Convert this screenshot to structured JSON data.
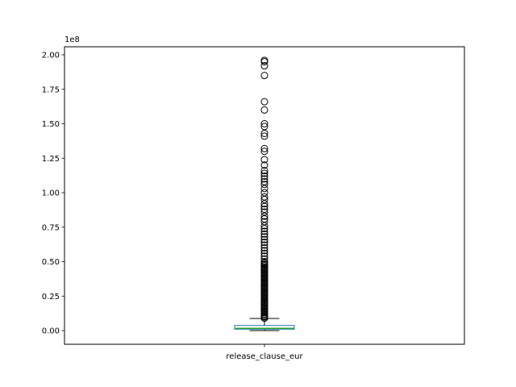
{
  "chart_data": {
    "type": "box",
    "title": "",
    "xlabel": "",
    "ylabel": "",
    "categories": [
      "release_clause_eur"
    ],
    "y_scale_label": "1e8",
    "ylim": [
      -0.1,
      2.05
    ],
    "y_ticks": [
      0.0,
      0.25,
      0.5,
      0.75,
      1.0,
      1.25,
      1.5,
      1.75,
      2.0
    ],
    "y_tick_labels": [
      "0.00",
      "0.25",
      "0.50",
      "0.75",
      "1.00",
      "1.25",
      "1.50",
      "1.75",
      "2.00"
    ],
    "grid": false,
    "legend": "none",
    "box": {
      "whisker_low": 0.0,
      "q1": 0.01,
      "median": 0.016,
      "q3": 0.037,
      "whisker_high": 0.088
    },
    "outliers": [
      1.96,
      1.95,
      1.92,
      1.85,
      1.66,
      1.6,
      1.5,
      1.48,
      1.43,
      1.41,
      1.32,
      1.3,
      1.24,
      1.2,
      1.16,
      1.14,
      1.12,
      1.1,
      1.08,
      1.06,
      1.03,
      1.0,
      0.97,
      0.95,
      0.92,
      0.9,
      0.88,
      0.86,
      0.83,
      0.81,
      0.79,
      0.76,
      0.74,
      0.72,
      0.7,
      0.68,
      0.66,
      0.64,
      0.62,
      0.6,
      0.58,
      0.56,
      0.54,
      0.52,
      0.5,
      0.48,
      0.46,
      0.44,
      0.42,
      0.4,
      0.38,
      0.36,
      0.34,
      0.32,
      0.3,
      0.28,
      0.26,
      0.24,
      0.22,
      0.2,
      0.18,
      0.16,
      0.14,
      0.12,
      0.1,
      0.09
    ],
    "colors": {
      "box": "#1f77b4",
      "median": "#2ca02c",
      "whisker": "#000000",
      "outlier": "#000000"
    }
  }
}
